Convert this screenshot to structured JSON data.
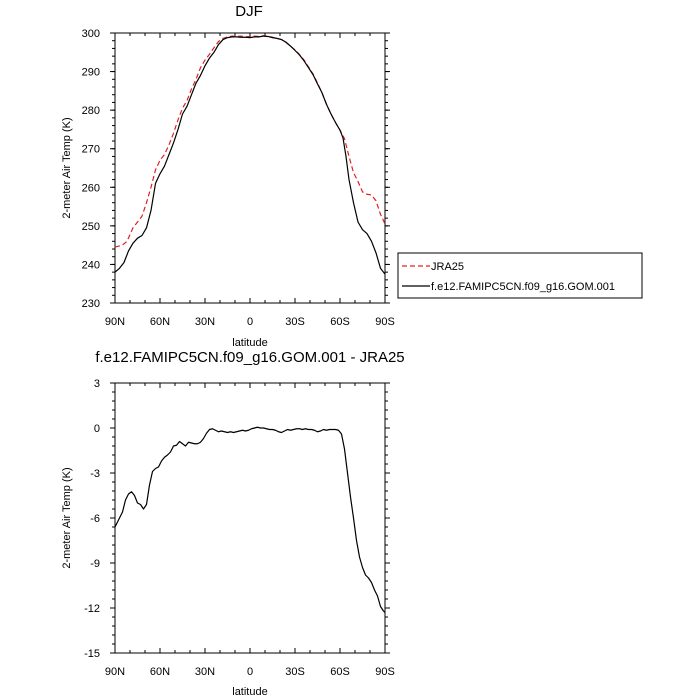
{
  "chart_data": [
    {
      "type": "line",
      "title": "DJF",
      "xlabel": "latitude",
      "ylabel": "2-meter Air Temp (K)",
      "xlim": [
        90,
        -90
      ],
      "ylim": [
        230,
        300
      ],
      "x_ticks": [
        {
          "value": 90,
          "label": "90N"
        },
        {
          "value": 60,
          "label": "60N"
        },
        {
          "value": 30,
          "label": "30N"
        },
        {
          "value": 0,
          "label": "0"
        },
        {
          "value": -30,
          "label": "30S"
        },
        {
          "value": -60,
          "label": "60S"
        },
        {
          "value": -90,
          "label": "90S"
        }
      ],
      "y_ticks": [
        230,
        240,
        250,
        260,
        270,
        280,
        290,
        300
      ],
      "legend": "right",
      "series": [
        {
          "name": "JRA25",
          "color": "#e02020",
          "dash": "dashed",
          "points": [
            [
              90,
              244.5
            ],
            [
              85,
              245
            ],
            [
              82,
              246
            ],
            [
              78,
              249.5
            ],
            [
              75,
              251
            ],
            [
              72,
              252.5
            ],
            [
              69,
              256
            ],
            [
              66,
              260
            ],
            [
              63,
              264.5
            ],
            [
              60,
              267
            ],
            [
              57,
              268.5
            ],
            [
              54,
              271
            ],
            [
              51,
              274
            ],
            [
              48,
              277.5
            ],
            [
              45,
              280.5
            ],
            [
              42,
              282.5
            ],
            [
              39,
              285.5
            ],
            [
              36,
              288
            ],
            [
              33,
              291
            ],
            [
              30,
              293
            ],
            [
              27,
              294.5
            ],
            [
              24,
              296.2
            ],
            [
              21,
              297.8
            ],
            [
              18,
              298.6
            ],
            [
              15,
              299.0
            ],
            [
              12,
              299.2
            ],
            [
              9,
              299.1
            ],
            [
              6,
              299.2
            ],
            [
              3,
              299.0
            ],
            [
              0,
              299.1
            ],
            [
              -3,
              299.2
            ],
            [
              -6,
              299.1
            ],
            [
              -9,
              299.3
            ],
            [
              -12,
              299.1
            ],
            [
              -15,
              298.9
            ],
            [
              -18,
              298.6
            ],
            [
              -21,
              298.3
            ],
            [
              -24,
              297.6
            ],
            [
              -27,
              296.6
            ],
            [
              -30,
              295.6
            ],
            [
              -33,
              294.4
            ],
            [
              -36,
              293.0
            ],
            [
              -39,
              291.2
            ],
            [
              -42,
              289.4
            ],
            [
              -45,
              287.0
            ],
            [
              -48,
              284.5
            ],
            [
              -51,
              281.5
            ],
            [
              -54,
              279.0
            ],
            [
              -57,
              276.8
            ],
            [
              -60,
              274.8
            ],
            [
              -63,
              272.6
            ],
            [
              -66,
              268.0
            ],
            [
              -69,
              263.8
            ],
            [
              -72,
              261.5
            ],
            [
              -75,
              258.8
            ],
            [
              -78,
              258.2
            ],
            [
              -81,
              258.0
            ],
            [
              -84,
              256.5
            ],
            [
              -87,
              253.0
            ],
            [
              -90,
              250.5
            ]
          ]
        },
        {
          "name": "f.e12.FAMIPC5CN.f09_g16.GOM.001",
          "color": "#000000",
          "dash": "solid",
          "points": [
            [
              90,
              238
            ],
            [
              87,
              239
            ],
            [
              84,
              240.5
            ],
            [
              81,
              243.5
            ],
            [
              78,
              245.5
            ],
            [
              75,
              246.8
            ],
            [
              72,
              247.5
            ],
            [
              69,
              249.5
            ],
            [
              66,
              254
            ],
            [
              63,
              261
            ],
            [
              60,
              263.5
            ],
            [
              57,
              265.5
            ],
            [
              54,
              268.5
            ],
            [
              51,
              271.5
            ],
            [
              48,
              275
            ],
            [
              45,
              279
            ],
            [
              42,
              281
            ],
            [
              39,
              284
            ],
            [
              36,
              287
            ],
            [
              33,
              289
            ],
            [
              30,
              291.5
            ],
            [
              27,
              293.5
            ],
            [
              24,
              295
            ],
            [
              21,
              297
            ],
            [
              18,
              298.3
            ],
            [
              15,
              298.8
            ],
            [
              12,
              299.0
            ],
            [
              9,
              299.0
            ],
            [
              6,
              298.9
            ],
            [
              3,
              298.9
            ],
            [
              0,
              298.8
            ],
            [
              -3,
              299.0
            ],
            [
              -6,
              299.0
            ],
            [
              -9,
              299.2
            ],
            [
              -12,
              299.1
            ],
            [
              -15,
              298.8
            ],
            [
              -18,
              298.6
            ],
            [
              -21,
              298.3
            ],
            [
              -24,
              297.6
            ],
            [
              -27,
              296.6
            ],
            [
              -30,
              295.5
            ],
            [
              -33,
              294.3
            ],
            [
              -36,
              292.8
            ],
            [
              -39,
              291.0
            ],
            [
              -42,
              289.2
            ],
            [
              -45,
              286.8
            ],
            [
              -48,
              284.5
            ],
            [
              -51,
              281.5
            ],
            [
              -54,
              279.0
            ],
            [
              -57,
              276.8
            ],
            [
              -60,
              274.8
            ],
            [
              -62,
              272.8
            ],
            [
              -64,
              268
            ],
            [
              -66,
              262
            ],
            [
              -69,
              256
            ],
            [
              -72,
              251
            ],
            [
              -75,
              249
            ],
            [
              -78,
              248
            ],
            [
              -81,
              246
            ],
            [
              -84,
              243
            ],
            [
              -87,
              239
            ],
            [
              -90,
              237.5
            ]
          ]
        }
      ]
    },
    {
      "type": "line",
      "title": "f.e12.FAMIPC5CN.f09_g16.GOM.001 - JRA25",
      "xlabel": "latitude",
      "ylabel": "2-meter Air Temp (K)",
      "xlim": [
        90,
        -90
      ],
      "ylim": [
        -15,
        3
      ],
      "x_ticks": [
        {
          "value": 90,
          "label": "90N"
        },
        {
          "value": 60,
          "label": "60N"
        },
        {
          "value": 30,
          "label": "30N"
        },
        {
          "value": 0,
          "label": "0"
        },
        {
          "value": -30,
          "label": "30S"
        },
        {
          "value": -60,
          "label": "60S"
        },
        {
          "value": -90,
          "label": "90S"
        }
      ],
      "y_ticks": [
        3,
        0,
        -3,
        -6,
        -9,
        -12,
        -15
      ],
      "series": [
        {
          "color": "#000000",
          "dash": "solid",
          "points": [
            [
              90,
              -6.6
            ],
            [
              87,
              -6.0
            ],
            [
              85,
              -5.6
            ],
            [
              83,
              -4.8
            ],
            [
              81,
              -4.4
            ],
            [
              79,
              -4.25
            ],
            [
              77,
              -4.5
            ],
            [
              75,
              -5.0
            ],
            [
              73,
              -5.1
            ],
            [
              71,
              -5.4
            ],
            [
              69,
              -5.1
            ],
            [
              67,
              -3.8
            ],
            [
              65,
              -2.9
            ],
            [
              63,
              -2.7
            ],
            [
              61,
              -2.6
            ],
            [
              59,
              -2.2
            ],
            [
              57,
              -1.95
            ],
            [
              55,
              -1.8
            ],
            [
              53,
              -1.6
            ],
            [
              51,
              -1.2
            ],
            [
              49,
              -1.15
            ],
            [
              47,
              -0.9
            ],
            [
              45,
              -1.05
            ],
            [
              43,
              -1.2
            ],
            [
              41,
              -0.95
            ],
            [
              39,
              -1.0
            ],
            [
              37,
              -1.05
            ],
            [
              35,
              -1.05
            ],
            [
              33,
              -0.95
            ],
            [
              31,
              -0.7
            ],
            [
              29,
              -0.35
            ],
            [
              27,
              -0.1
            ],
            [
              25,
              -0.05
            ],
            [
              23,
              -0.15
            ],
            [
              21,
              -0.25
            ],
            [
              19,
              -0.2
            ],
            [
              17,
              -0.25
            ],
            [
              15,
              -0.3
            ],
            [
              13,
              -0.25
            ],
            [
              11,
              -0.3
            ],
            [
              9,
              -0.25
            ],
            [
              7,
              -0.2
            ],
            [
              5,
              -0.15
            ],
            [
              3,
              -0.2
            ],
            [
              1,
              -0.15
            ],
            [
              -1,
              -0.05
            ],
            [
              -3,
              0.0
            ],
            [
              -5,
              0.05
            ],
            [
              -7,
              0.0
            ],
            [
              -9,
              0.0
            ],
            [
              -11,
              -0.05
            ],
            [
              -13,
              -0.1
            ],
            [
              -15,
              -0.1
            ],
            [
              -17,
              -0.15
            ],
            [
              -19,
              -0.25
            ],
            [
              -21,
              -0.3
            ],
            [
              -23,
              -0.2
            ],
            [
              -25,
              -0.1
            ],
            [
              -27,
              -0.15
            ],
            [
              -29,
              -0.1
            ],
            [
              -31,
              -0.05
            ],
            [
              -33,
              -0.05
            ],
            [
              -35,
              -0.1
            ],
            [
              -37,
              -0.05
            ],
            [
              -39,
              -0.1
            ],
            [
              -41,
              -0.1
            ],
            [
              -43,
              -0.15
            ],
            [
              -45,
              -0.25
            ],
            [
              -47,
              -0.2
            ],
            [
              -49,
              -0.1
            ],
            [
              -51,
              -0.15
            ],
            [
              -53,
              -0.1
            ],
            [
              -55,
              -0.1
            ],
            [
              -57,
              -0.1
            ],
            [
              -59,
              -0.15
            ],
            [
              -61,
              -0.4
            ],
            [
              -63,
              -1.4
            ],
            [
              -65,
              -3.0
            ],
            [
              -67,
              -4.6
            ],
            [
              -69,
              -6.0
            ],
            [
              -71,
              -7.5
            ],
            [
              -73,
              -8.6
            ],
            [
              -75,
              -9.3
            ],
            [
              -77,
              -9.8
            ],
            [
              -79,
              -10.0
            ],
            [
              -81,
              -10.3
            ],
            [
              -83,
              -10.8
            ],
            [
              -85,
              -11.2
            ],
            [
              -87,
              -11.9
            ],
            [
              -89,
              -12.2
            ],
            [
              -90,
              -12.3
            ]
          ]
        }
      ]
    }
  ]
}
